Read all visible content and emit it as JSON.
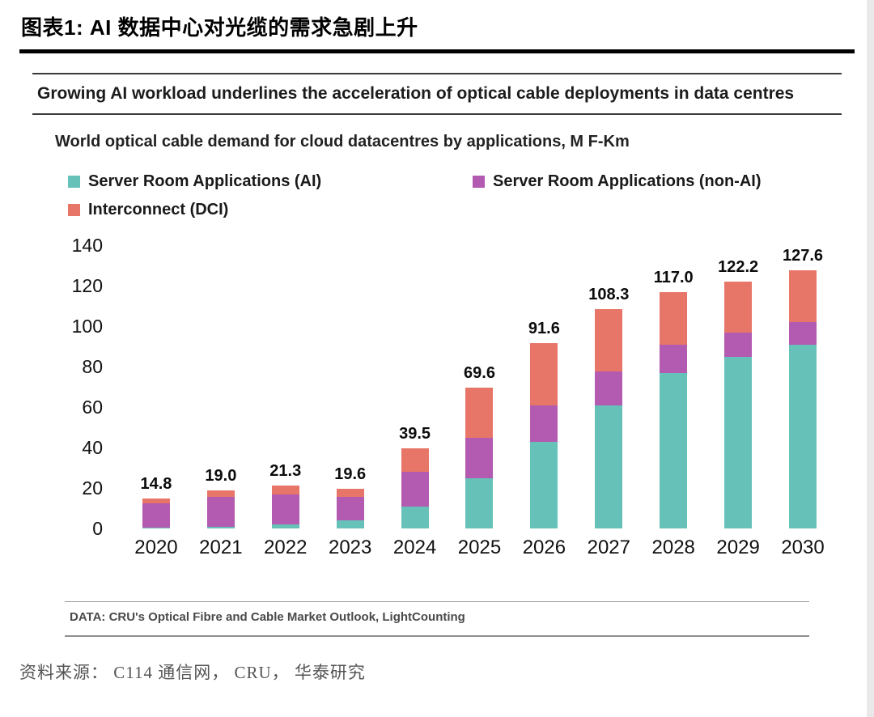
{
  "page": {
    "header_title": "图表1:  AI 数据中心对光缆的需求急剧上升",
    "source_line": "资料来源： C114 通信网， CRU， 华泰研究"
  },
  "chart_data": {
    "type": "bar",
    "stacked": true,
    "title": "Growing AI workload underlines the acceleration of optical cable deployments in data centres",
    "subtitle": "World optical cable demand for cloud datacentres by applications, M F-Km",
    "categories": [
      "2020",
      "2021",
      "2022",
      "2023",
      "2024",
      "2025",
      "2026",
      "2027",
      "2028",
      "2029",
      "2030"
    ],
    "series": [
      {
        "name": "Server Room Applications (AI)",
        "color": "#66c2b8",
        "values": [
          0.5,
          1.0,
          2.0,
          4.0,
          11.0,
          25.0,
          43.0,
          61.0,
          77.0,
          85.0,
          91.0
        ]
      },
      {
        "name": "Server Room Applications (non-AI)",
        "color": "#b35ab1",
        "values": [
          11.8,
          14.5,
          15.0,
          11.5,
          17.0,
          20.0,
          18.0,
          16.5,
          14.0,
          12.0,
          11.0
        ]
      },
      {
        "name": "Interconnect (DCI)",
        "color": "#e77668",
        "values": [
          2.5,
          3.5,
          4.3,
          4.1,
          11.5,
          24.6,
          30.6,
          30.8,
          26.0,
          25.2,
          25.6
        ]
      }
    ],
    "totals": [
      14.8,
      19.0,
      21.3,
      19.6,
      39.5,
      69.6,
      91.6,
      108.3,
      117.0,
      122.2,
      127.6
    ],
    "y_ticks": [
      0,
      20,
      40,
      60,
      80,
      100,
      120,
      140
    ],
    "ylim": [
      0,
      140
    ],
    "grid": false,
    "legend_position": "top",
    "footnote": "DATA: CRU's Optical Fibre and Cable Market Outlook, LightCounting"
  }
}
